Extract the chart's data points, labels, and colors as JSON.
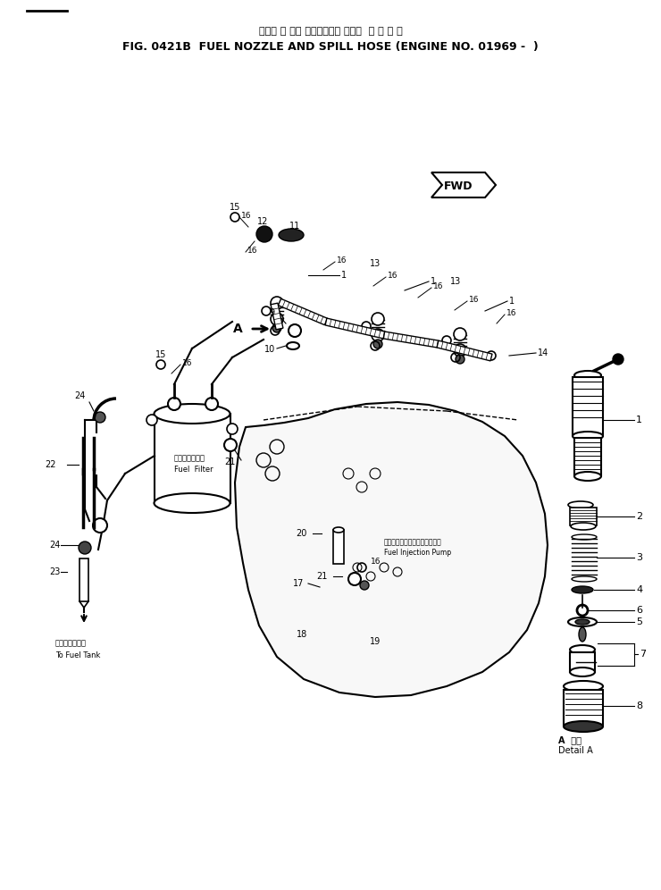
{
  "title_japanese": "フェル ノ ズル およびスピル ホース  適 用 号 機",
  "title_english": "FIG. 0421B  FUEL NOZZLE AND SPILL HOSE (ENGINE NO. 01969 -  )",
  "bg_color": "#ffffff",
  "line_color": "#000000",
  "text_color": "#000000",
  "fig_width": 7.4,
  "fig_height": 9.96,
  "dpi": 100,
  "detail_a_label": "A 部詳\nDetail A",
  "fwd_label": "FWD",
  "fuel_filter_label_jp": "フェルフィルタ",
  "fuel_filter_label_en": "Fuel  Filter",
  "fuel_injection_label_jp": "フェルインジェクションポンプ",
  "fuel_injection_label_en": "Fuel Injection Pump",
  "to_fuel_tank_label_jp": "フェルタンクへ",
  "to_fuel_tank_label_en": "To Fuel Tank"
}
